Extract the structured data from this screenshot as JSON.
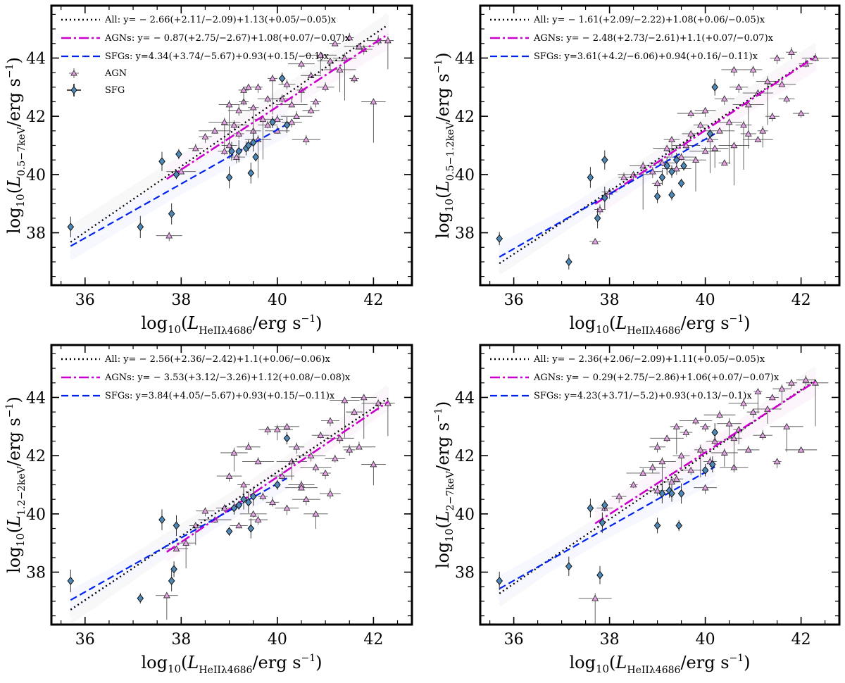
{
  "figure": {
    "legend_labels": {
      "agn": "AGN",
      "sfg": "SFG"
    }
  },
  "chart_data": [
    {
      "type": "scatter",
      "panel": "top-left",
      "xlabel": "log10(L_HeII λ4686 / erg s^-1)",
      "ylabel": "log10(L_0.5-7keV / erg s^-1)",
      "ylabel_band": "0.5−7keV",
      "xlim": [
        35.3,
        42.8
      ],
      "ylim": [
        36.2,
        45.8
      ],
      "xticks": [
        36,
        38,
        40,
        42
      ],
      "yticks": [
        38,
        40,
        42,
        44
      ],
      "fits": [
        {
          "name": "All",
          "a": -2.66,
          "b": 1.13,
          "label": "All: y= − 2.66(+2.11/−2.09)+1.13(+0.05/−0.05)x",
          "x": [
            35.7,
            42.3
          ],
          "style": "dotted",
          "color": "#000000"
        },
        {
          "name": "AGNs",
          "a": -0.87,
          "b": 1.08,
          "label": "AGNs: y= − 0.87(+2.75/−2.67)+1.08(+0.07/−0.07)x",
          "x": [
            37.7,
            42.3
          ],
          "style": "dashdot",
          "color": "#cc00cc"
        },
        {
          "name": "SFGs",
          "a": 4.34,
          "b": 0.93,
          "label": "SFGs: y=4.34(+3.74/−5.67)+0.93(+0.15/−0.1)x",
          "x": [
            35.7,
            40.2
          ],
          "style": "dashed",
          "color": "#0022ee"
        }
      ],
      "sfg_points": [
        [
          35.7,
          38.2
        ],
        [
          37.15,
          38.2
        ],
        [
          37.6,
          40.45
        ],
        [
          37.8,
          38.65
        ],
        [
          37.95,
          40.7
        ],
        [
          37.9,
          40.0
        ],
        [
          39.0,
          39.9
        ],
        [
          39.05,
          40.8
        ],
        [
          39.2,
          40.8
        ],
        [
          39.35,
          40.9
        ],
        [
          39.4,
          41.0
        ],
        [
          39.45,
          40.05
        ],
        [
          39.5,
          41.1
        ],
        [
          39.55,
          40.6
        ],
        [
          39.9,
          41.8
        ],
        [
          40.1,
          43.3
        ],
        [
          40.2,
          41.7
        ]
      ],
      "agn_points": [
        [
          37.75,
          37.9
        ],
        [
          38.0,
          40.1
        ],
        [
          38.3,
          40.9
        ],
        [
          38.5,
          41.3
        ],
        [
          38.7,
          41.5
        ],
        [
          38.9,
          41.8
        ],
        [
          39.0,
          42.4
        ],
        [
          39.1,
          41.7
        ],
        [
          39.2,
          42.2
        ],
        [
          39.3,
          42.5
        ],
        [
          39.3,
          42.9
        ],
        [
          39.4,
          43.0
        ],
        [
          39.5,
          41.5
        ],
        [
          39.5,
          42.3
        ],
        [
          39.6,
          43.0
        ],
        [
          39.7,
          41.9
        ],
        [
          39.8,
          42.6
        ],
        [
          39.9,
          43.3
        ],
        [
          40.0,
          41.5
        ],
        [
          40.1,
          42.6
        ],
        [
          40.2,
          43.1
        ],
        [
          40.3,
          42.4
        ],
        [
          40.4,
          42.0
        ],
        [
          40.5,
          43.8
        ],
        [
          40.5,
          42.9
        ],
        [
          40.6,
          41.2
        ],
        [
          40.7,
          43.4
        ],
        [
          40.8,
          42.5
        ],
        [
          40.9,
          44.1
        ],
        [
          41.0,
          43.0
        ],
        [
          41.1,
          43.9
        ],
        [
          41.2,
          44.5
        ],
        [
          41.3,
          43.6
        ],
        [
          41.4,
          44.0
        ],
        [
          41.5,
          44.7
        ],
        [
          41.6,
          43.3
        ],
        [
          41.7,
          44.4
        ],
        [
          41.8,
          44.3
        ],
        [
          42.0,
          42.5
        ],
        [
          42.1,
          44.6
        ],
        [
          42.3,
          44.6
        ],
        [
          39.0,
          41.0
        ],
        [
          39.2,
          41.4
        ],
        [
          39.6,
          41.2
        ],
        [
          39.8,
          41.7
        ],
        [
          40.0,
          41.9
        ],
        [
          40.3,
          41.8
        ],
        [
          40.7,
          42.2
        ],
        [
          38.9,
          40.8
        ],
        [
          39.15,
          40.6
        ]
      ]
    },
    {
      "type": "scatter",
      "panel": "top-right",
      "xlabel": "log10(L_HeII λ4686 / erg s^-1)",
      "ylabel": "log10(L_0.5-1.2keV / erg s^-1)",
      "ylabel_band": "0.5−1.2keV",
      "xlim": [
        35.3,
        42.8
      ],
      "ylim": [
        36.2,
        45.8
      ],
      "xticks": [
        36,
        38,
        40,
        42
      ],
      "yticks": [
        38,
        40,
        42,
        44
      ],
      "fits": [
        {
          "name": "All",
          "a": -1.61,
          "b": 1.08,
          "label": "All: y= − 1.61(+2.09/−2.22)+1.08(+0.06/−0.05)x",
          "x": [
            35.7,
            42.3
          ],
          "style": "dotted",
          "color": "#000000"
        },
        {
          "name": "AGNs",
          "a": -2.48,
          "b": 1.1,
          "label": "AGNs: y= − 2.48(+2.73/−2.61)+1.1(+0.07/−0.07)x",
          "x": [
            37.7,
            42.3
          ],
          "style": "dashdot",
          "color": "#cc00cc"
        },
        {
          "name": "SFGs",
          "a": 3.61,
          "b": 0.94,
          "label": "SFGs: y=3.61(+4.2/−6.06)+0.94(+0.16/−0.11)x",
          "x": [
            35.7,
            40.2
          ],
          "style": "dashed",
          "color": "#0022ee"
        }
      ],
      "sfg_points": [
        [
          35.7,
          37.8
        ],
        [
          37.15,
          37.0
        ],
        [
          37.6,
          39.9
        ],
        [
          37.75,
          38.5
        ],
        [
          37.9,
          40.5
        ],
        [
          37.9,
          39.2
        ],
        [
          39.0,
          39.25
        ],
        [
          39.1,
          39.9
        ],
        [
          39.2,
          40.3
        ],
        [
          39.3,
          40.1
        ],
        [
          39.3,
          39.3
        ],
        [
          39.4,
          40.5
        ],
        [
          39.5,
          39.7
        ],
        [
          39.55,
          40.3
        ],
        [
          40.2,
          43.0
        ],
        [
          40.1,
          41.4
        ]
      ],
      "agn_points": [
        [
          37.7,
          37.7
        ],
        [
          37.8,
          38.8
        ],
        [
          38.0,
          39.4
        ],
        [
          38.3,
          39.9
        ],
        [
          38.5,
          40.0
        ],
        [
          38.7,
          40.3
        ],
        [
          38.9,
          40.1
        ],
        [
          39.0,
          39.7
        ],
        [
          39.1,
          40.4
        ],
        [
          39.2,
          40.9
        ],
        [
          39.3,
          41.2
        ],
        [
          39.4,
          40.2
        ],
        [
          39.5,
          40.6
        ],
        [
          39.6,
          41.0
        ],
        [
          39.7,
          41.4
        ],
        [
          39.8,
          40.5
        ],
        [
          39.9,
          41.7
        ],
        [
          40.0,
          42.2
        ],
        [
          40.1,
          41.2
        ],
        [
          40.2,
          40.9
        ],
        [
          40.3,
          41.5
        ],
        [
          40.4,
          42.6
        ],
        [
          40.5,
          41.8
        ],
        [
          40.6,
          41.0
        ],
        [
          40.7,
          43.0
        ],
        [
          40.8,
          41.7
        ],
        [
          40.9,
          42.4
        ],
        [
          41.0,
          43.6
        ],
        [
          41.1,
          42.8
        ],
        [
          41.2,
          41.5
        ],
        [
          41.3,
          43.2
        ],
        [
          41.4,
          42.0
        ],
        [
          41.5,
          44.0
        ],
        [
          41.6,
          43.1
        ],
        [
          41.7,
          42.6
        ],
        [
          41.8,
          44.2
        ],
        [
          42.0,
          42.1
        ],
        [
          42.1,
          43.8
        ],
        [
          42.3,
          44.0
        ],
        [
          40.4,
          40.4
        ],
        [
          40.6,
          43.6
        ],
        [
          39.7,
          42.1
        ],
        [
          40.0,
          40.8
        ],
        [
          40.9,
          41.4
        ],
        [
          41.1,
          41.2
        ]
      ]
    },
    {
      "type": "scatter",
      "panel": "bottom-left",
      "xlabel": "log10(L_HeII λ4686 / erg s^-1)",
      "ylabel": "log10(L_1.2-2keV / erg s^-1)",
      "ylabel_band": "1.2−2keV",
      "xlim": [
        35.3,
        42.8
      ],
      "ylim": [
        36.2,
        45.8
      ],
      "xticks": [
        36,
        38,
        40,
        42
      ],
      "yticks": [
        38,
        40,
        42,
        44
      ],
      "fits": [
        {
          "name": "All",
          "a": -2.56,
          "b": 1.1,
          "label": "All: y= − 2.56(+2.36/−2.42)+1.1(+0.06/−0.06)x",
          "x": [
            35.7,
            42.3
          ],
          "style": "dotted",
          "color": "#000000"
        },
        {
          "name": "AGNs",
          "a": -3.53,
          "b": 1.12,
          "label": "AGNs: y= − 3.53(+3.12/−3.26)+1.12(+0.08/−0.08)x",
          "x": [
            37.7,
            42.3
          ],
          "style": "dashdot",
          "color": "#cc00cc"
        },
        {
          "name": "SFGs",
          "a": 3.84,
          "b": 0.93,
          "label": "SFGs: y=3.84(+4.05/−5.67)+0.93(+0.15/−0.11)x",
          "x": [
            35.7,
            40.2
          ],
          "style": "dashed",
          "color": "#0022ee"
        }
      ],
      "sfg_points": [
        [
          35.7,
          37.7
        ],
        [
          37.15,
          37.1
        ],
        [
          37.6,
          39.8
        ],
        [
          37.8,
          37.7
        ],
        [
          37.9,
          39.6
        ],
        [
          37.85,
          38.1
        ],
        [
          39.0,
          39.4
        ],
        [
          39.1,
          40.2
        ],
        [
          39.2,
          40.3
        ],
        [
          39.3,
          40.5
        ],
        [
          39.4,
          40.4
        ],
        [
          39.45,
          39.5
        ],
        [
          39.5,
          40.6
        ],
        [
          40.0,
          41.0
        ],
        [
          40.2,
          42.6
        ]
      ],
      "agn_points": [
        [
          37.7,
          37.2
        ],
        [
          37.9,
          38.8
        ],
        [
          38.1,
          39.0
        ],
        [
          38.3,
          39.6
        ],
        [
          38.5,
          40.1
        ],
        [
          38.7,
          39.8
        ],
        [
          38.9,
          40.2
        ],
        [
          39.0,
          41.3
        ],
        [
          39.1,
          42.1
        ],
        [
          39.2,
          39.6
        ],
        [
          39.3,
          41.0
        ],
        [
          39.4,
          42.3
        ],
        [
          39.5,
          40.0
        ],
        [
          39.6,
          41.8
        ],
        [
          39.7,
          40.6
        ],
        [
          39.8,
          42.9
        ],
        [
          39.9,
          40.4
        ],
        [
          40.0,
          42.9
        ],
        [
          40.1,
          41.3
        ],
        [
          40.2,
          40.2
        ],
        [
          40.3,
          41.8
        ],
        [
          40.4,
          42.3
        ],
        [
          40.5,
          41.0
        ],
        [
          40.6,
          40.5
        ],
        [
          40.7,
          42.0
        ],
        [
          40.8,
          41.6
        ],
        [
          40.9,
          42.7
        ],
        [
          41.0,
          41.4
        ],
        [
          41.1,
          43.2
        ],
        [
          41.2,
          41.9
        ],
        [
          41.3,
          42.6
        ],
        [
          41.4,
          43.9
        ],
        [
          41.5,
          42.2
        ],
        [
          41.6,
          43.5
        ],
        [
          41.7,
          42.3
        ],
        [
          41.8,
          44.0
        ],
        [
          42.0,
          41.7
        ],
        [
          42.1,
          43.8
        ],
        [
          42.3,
          43.8
        ],
        [
          40.2,
          43.0
        ],
        [
          39.6,
          39.8
        ],
        [
          40.5,
          40.9
        ],
        [
          40.8,
          40.0
        ],
        [
          41.1,
          40.7
        ]
      ]
    },
    {
      "type": "scatter",
      "panel": "bottom-right",
      "xlabel": "log10(L_HeII λ4686 / erg s^-1)",
      "ylabel": "log10(L_2-7keV / erg s^-1)",
      "ylabel_band": "2−7keV",
      "xlim": [
        35.3,
        42.8
      ],
      "ylim": [
        36.2,
        45.8
      ],
      "xticks": [
        36,
        38,
        40,
        42
      ],
      "yticks": [
        38,
        40,
        42,
        44
      ],
      "fits": [
        {
          "name": "All",
          "a": -2.36,
          "b": 1.11,
          "label": "All: y= − 2.36(+2.06/−2.09)+1.11(+0.05/−0.05)x",
          "x": [
            35.7,
            42.3
          ],
          "style": "dotted",
          "color": "#000000"
        },
        {
          "name": "AGNs",
          "a": -0.29,
          "b": 1.06,
          "label": "AGNs: y= − 0.29(+2.75/−2.86)+1.06(+0.07/−0.07)x",
          "x": [
            37.7,
            42.3
          ],
          "style": "dashdot",
          "color": "#cc00cc"
        },
        {
          "name": "SFGs",
          "a": 4.23,
          "b": 0.93,
          "label": "SFGs: y=4.23(+3.71/−5.2)+0.93(+0.13/−0.1)x",
          "x": [
            35.7,
            40.2
          ],
          "style": "dashed",
          "color": "#0022ee"
        }
      ],
      "sfg_points": [
        [
          35.7,
          37.7
        ],
        [
          37.15,
          38.2
        ],
        [
          37.6,
          40.2
        ],
        [
          37.8,
          37.9
        ],
        [
          37.9,
          40.3
        ],
        [
          37.85,
          39.7
        ],
        [
          39.0,
          39.6
        ],
        [
          39.1,
          40.7
        ],
        [
          39.25,
          40.8
        ],
        [
          39.3,
          40.7
        ],
        [
          39.45,
          39.6
        ],
        [
          39.5,
          40.7
        ],
        [
          40.0,
          41.5
        ],
        [
          40.2,
          42.8
        ],
        [
          40.15,
          41.7
        ]
      ],
      "agn_points": [
        [
          37.7,
          37.1
        ],
        [
          37.9,
          40.2
        ],
        [
          38.2,
          40.6
        ],
        [
          38.5,
          41.0
        ],
        [
          38.7,
          41.4
        ],
        [
          38.9,
          41.6
        ],
        [
          39.0,
          42.3
        ],
        [
          39.1,
          41.8
        ],
        [
          39.2,
          42.6
        ],
        [
          39.3,
          41.1
        ],
        [
          39.4,
          43.0
        ],
        [
          39.5,
          42.0
        ],
        [
          39.6,
          42.8
        ],
        [
          39.7,
          41.5
        ],
        [
          39.8,
          43.2
        ],
        [
          39.9,
          42.2
        ],
        [
          40.0,
          43.0
        ],
        [
          40.1,
          41.8
        ],
        [
          40.2,
          42.5
        ],
        [
          40.3,
          43.4
        ],
        [
          40.4,
          42.1
        ],
        [
          40.5,
          43.1
        ],
        [
          40.6,
          41.6
        ],
        [
          40.7,
          42.9
        ],
        [
          40.8,
          43.8
        ],
        [
          40.9,
          42.2
        ],
        [
          41.0,
          43.5
        ],
        [
          41.1,
          44.2
        ],
        [
          41.2,
          42.7
        ],
        [
          41.3,
          43.6
        ],
        [
          41.4,
          44.0
        ],
        [
          41.5,
          41.8
        ],
        [
          41.6,
          44.3
        ],
        [
          41.7,
          43.0
        ],
        [
          41.8,
          44.5
        ],
        [
          42.0,
          42.2
        ],
        [
          42.1,
          44.6
        ],
        [
          42.3,
          44.5
        ],
        [
          39.0,
          40.8
        ],
        [
          39.4,
          41.2
        ],
        [
          40.0,
          40.9
        ],
        [
          40.6,
          42.6
        ]
      ]
    }
  ]
}
